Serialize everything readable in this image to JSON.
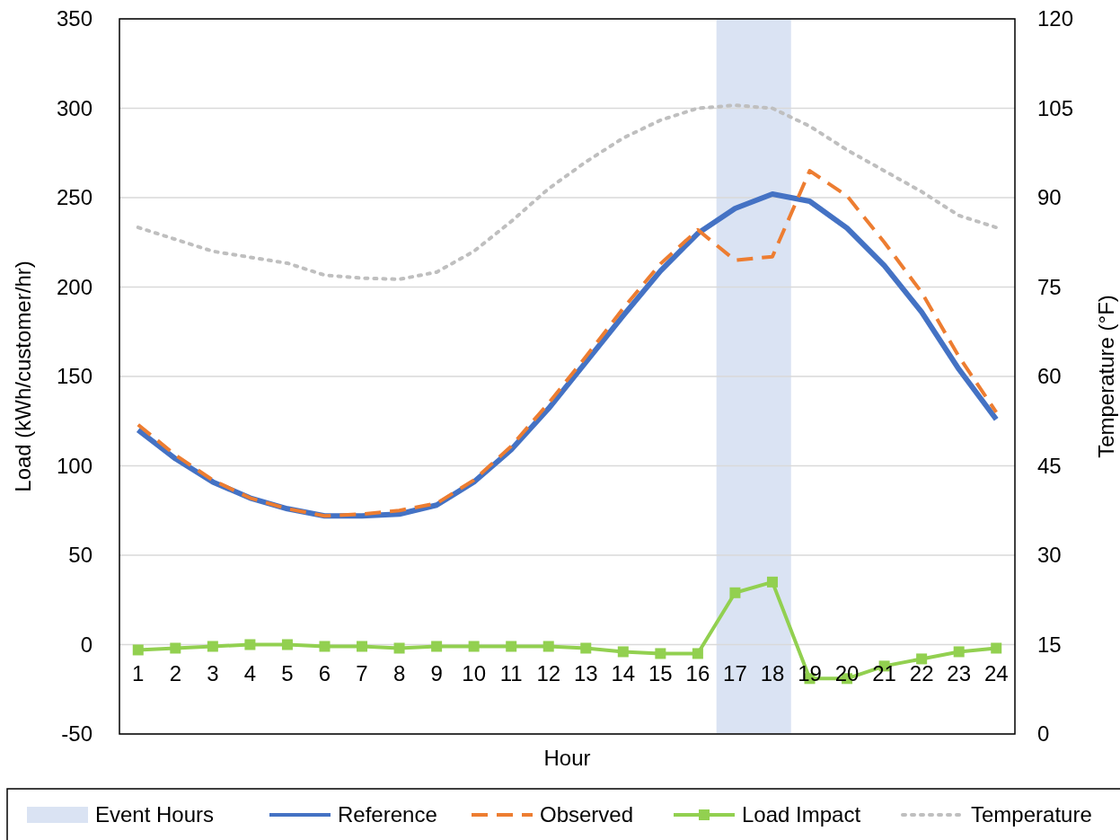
{
  "chart_data": {
    "type": "line",
    "xlabel": "Hour",
    "ylabel": "Load (kWh/customer/hr)",
    "y2label": "Temperature (°F)",
    "x": [
      1,
      2,
      3,
      4,
      5,
      6,
      7,
      8,
      9,
      10,
      11,
      12,
      13,
      14,
      15,
      16,
      17,
      18,
      19,
      20,
      21,
      22,
      23,
      24
    ],
    "xlim": [
      0.5,
      24.5
    ],
    "xticks": [
      1,
      2,
      3,
      4,
      5,
      6,
      7,
      8,
      9,
      10,
      11,
      12,
      13,
      14,
      15,
      16,
      17,
      18,
      19,
      20,
      21,
      22,
      23,
      24
    ],
    "ylim": [
      -50,
      350
    ],
    "yticks": [
      -50,
      0,
      50,
      100,
      150,
      200,
      250,
      300,
      350
    ],
    "y2lim": [
      0,
      120
    ],
    "y2ticks": [
      0,
      15,
      30,
      45,
      60,
      75,
      90,
      105,
      120
    ],
    "grid": "y",
    "legend": "bottom",
    "bands": [
      {
        "axis": "x",
        "from": 16.5,
        "to": 18.5,
        "label": "Event Hours",
        "color": "#dae3f3"
      }
    ],
    "series": [
      {
        "name": "Reference",
        "color": "#4472c4",
        "line_style": "solid",
        "marker": "none",
        "values": [
          120,
          104,
          91,
          82,
          76,
          72,
          72,
          73,
          78,
          91,
          109,
          132,
          158,
          184,
          209,
          230,
          244,
          252,
          248,
          233,
          212,
          186,
          154,
          126
        ]
      },
      {
        "name": "Observed",
        "color": "#ed7d31",
        "line_style": "dashed",
        "marker": "none",
        "values": [
          123,
          106,
          92,
          82,
          76,
          72,
          73,
          75,
          79,
          92,
          111,
          135,
          161,
          188,
          213,
          232,
          215,
          217,
          265,
          251,
          225,
          197,
          161,
          130
        ]
      },
      {
        "name": "Load Impact",
        "color": "#92d050",
        "line_style": "solid",
        "marker": "square",
        "values": [
          -3,
          -2,
          -1,
          0,
          0,
          -1,
          -1,
          -2,
          -1,
          -1,
          -1,
          -1,
          -2,
          -4,
          -5,
          -5,
          29,
          35,
          -19,
          -19,
          -12,
          -8,
          -4,
          -2
        ]
      },
      {
        "name": "Temperature",
        "color": "#bfbfbf",
        "line_style": "dotted",
        "marker": "none",
        "axis": "y2",
        "values": [
          85,
          83,
          81,
          80,
          79,
          77,
          76.5,
          76.3,
          77.5,
          81,
          86,
          91.5,
          96,
          100,
          103,
          105,
          105.5,
          105,
          102,
          98,
          94.5,
          91,
          87,
          85
        ]
      }
    ]
  }
}
